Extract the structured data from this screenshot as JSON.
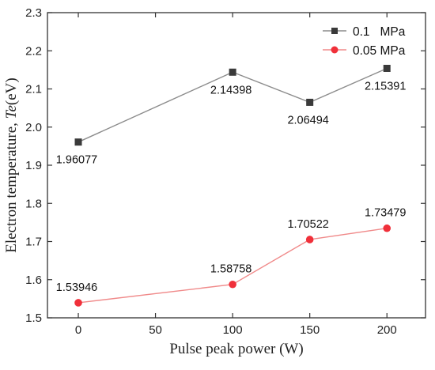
{
  "chart_data": {
    "type": "line",
    "xlabel": "Pulse peak power (W)",
    "ylabel_main": "Electron temperature, ",
    "ylabel_italic": "Te",
    "ylabel_unit": "(eV)",
    "xlim": [
      -20,
      225
    ],
    "ylim": [
      1.5,
      2.3
    ],
    "xticks": [
      0,
      50,
      100,
      150,
      200
    ],
    "xtick_labels": [
      "0",
      "50",
      "100",
      "150",
      "200"
    ],
    "yticks": [
      1.5,
      1.6,
      1.7,
      1.8,
      1.9,
      2.0,
      2.1,
      2.2,
      2.3
    ],
    "ytick_labels": [
      "1.5",
      "1.6",
      "1.7",
      "1.8",
      "1.9",
      "2.0",
      "2.1",
      "2.2",
      "2.3"
    ],
    "grid": false,
    "legend_position": "top-right",
    "series": [
      {
        "name": "0.1   MPa",
        "color": "#8c8c8c",
        "marker_color": "#3a3a3a",
        "marker": "square",
        "x": [
          0,
          100,
          150,
          200
        ],
        "y": [
          1.96077,
          2.14398,
          2.06494,
          2.15391
        ],
        "labels": [
          "1.96077",
          "2.14398",
          "2.06494",
          "2.15391"
        ]
      },
      {
        "name": "0.05 MPa",
        "color": "#f08a8a",
        "marker_color": "#f0303a",
        "marker": "circle",
        "x": [
          0,
          100,
          150,
          200
        ],
        "y": [
          1.53946,
          1.58758,
          1.70522,
          1.73479
        ],
        "labels": [
          "1.53946",
          "1.58758",
          "1.70522",
          "1.73479"
        ]
      }
    ]
  }
}
